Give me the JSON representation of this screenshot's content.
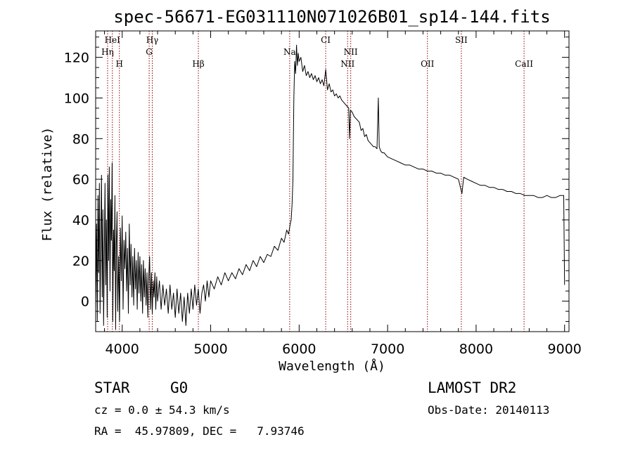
{
  "chart_data": {
    "type": "line",
    "title": "spec-56671-EG031110N071026B01_sp14-144.fits",
    "xlabel": "Wavelength (Å)",
    "ylabel": "Flux (relative)",
    "xlim": [
      3700,
      9050
    ],
    "ylim": [
      -15,
      133
    ],
    "x_ticks": [
      4000,
      5000,
      6000,
      7000,
      8000,
      9000
    ],
    "y_ticks": [
      0,
      20,
      40,
      60,
      80,
      100,
      120
    ],
    "line_color": "#000000",
    "marker_color": "#8b0000",
    "series": [
      {
        "points": [
          [
            3700,
            -3
          ],
          [
            3710,
            38
          ],
          [
            3718,
            -10
          ],
          [
            3726,
            52
          ],
          [
            3734,
            14
          ],
          [
            3742,
            58
          ],
          [
            3750,
            -6
          ],
          [
            3758,
            30
          ],
          [
            3766,
            62
          ],
          [
            3774,
            2
          ],
          [
            3782,
            45
          ],
          [
            3790,
            -12
          ],
          [
            3798,
            24
          ],
          [
            3806,
            58
          ],
          [
            3814,
            8
          ],
          [
            3822,
            40
          ],
          [
            3830,
            -8
          ],
          [
            3838,
            62
          ],
          [
            3846,
            20
          ],
          [
            3854,
            66
          ],
          [
            3862,
            5
          ],
          [
            3870,
            50
          ],
          [
            3878,
            30
          ],
          [
            3886,
            68
          ],
          [
            3894,
            -10
          ],
          [
            3902,
            35
          ],
          [
            3910,
            15
          ],
          [
            3918,
            52
          ],
          [
            3926,
            -14
          ],
          [
            3934,
            28
          ],
          [
            3942,
            44
          ],
          [
            3950,
            -5
          ],
          [
            3960,
            22
          ],
          [
            3970,
            -10
          ],
          [
            3980,
            36
          ],
          [
            3990,
            10
          ],
          [
            4000,
            42
          ],
          [
            4010,
            -4
          ],
          [
            4020,
            30
          ],
          [
            4030,
            16
          ],
          [
            4040,
            34
          ],
          [
            4050,
            5
          ],
          [
            4060,
            26
          ],
          [
            4070,
            -6
          ],
          [
            4080,
            38
          ],
          [
            4090,
            8
          ],
          [
            4100,
            28
          ],
          [
            4110,
            2
          ],
          [
            4120,
            22
          ],
          [
            4130,
            -2
          ],
          [
            4140,
            26
          ],
          [
            4150,
            6
          ],
          [
            4160,
            20
          ],
          [
            4170,
            -4
          ],
          [
            4180,
            24
          ],
          [
            4190,
            4
          ],
          [
            4200,
            22
          ],
          [
            4210,
            0
          ],
          [
            4220,
            18
          ],
          [
            4230,
            -6
          ],
          [
            4240,
            20
          ],
          [
            4250,
            2
          ],
          [
            4260,
            16
          ],
          [
            4270,
            -2
          ],
          [
            4280,
            14
          ],
          [
            4290,
            -8
          ],
          [
            4300,
            12
          ],
          [
            4310,
            22
          ],
          [
            4320,
            -4
          ],
          [
            4330,
            14
          ],
          [
            4340,
            -6
          ],
          [
            4350,
            10
          ],
          [
            4360,
            2
          ],
          [
            4370,
            14
          ],
          [
            4380,
            -4
          ],
          [
            4390,
            12
          ],
          [
            4400,
            0
          ],
          [
            4420,
            10
          ],
          [
            4440,
            -4
          ],
          [
            4460,
            8
          ],
          [
            4480,
            -2
          ],
          [
            4500,
            6
          ],
          [
            4520,
            -6
          ],
          [
            4540,
            8
          ],
          [
            4560,
            -4
          ],
          [
            4580,
            4
          ],
          [
            4600,
            -8
          ],
          [
            4620,
            6
          ],
          [
            4640,
            -6
          ],
          [
            4660,
            4
          ],
          [
            4680,
            -10
          ],
          [
            4700,
            2
          ],
          [
            4720,
            -12
          ],
          [
            4740,
            4
          ],
          [
            4760,
            -6
          ],
          [
            4780,
            6
          ],
          [
            4800,
            -4
          ],
          [
            4820,
            8
          ],
          [
            4840,
            -2
          ],
          [
            4860,
            6
          ],
          [
            4880,
            -6
          ],
          [
            4900,
            4
          ],
          [
            4920,
            8
          ],
          [
            4940,
            0
          ],
          [
            4960,
            10
          ],
          [
            4980,
            2
          ],
          [
            5000,
            10
          ],
          [
            5040,
            6
          ],
          [
            5080,
            12
          ],
          [
            5120,
            8
          ],
          [
            5160,
            14
          ],
          [
            5200,
            10
          ],
          [
            5240,
            14
          ],
          [
            5280,
            11
          ],
          [
            5320,
            16
          ],
          [
            5360,
            13
          ],
          [
            5400,
            18
          ],
          [
            5440,
            15
          ],
          [
            5480,
            20
          ],
          [
            5520,
            17
          ],
          [
            5560,
            22
          ],
          [
            5600,
            19
          ],
          [
            5640,
            23
          ],
          [
            5680,
            22
          ],
          [
            5720,
            27
          ],
          [
            5760,
            25
          ],
          [
            5800,
            31
          ],
          [
            5830,
            29
          ],
          [
            5860,
            35
          ],
          [
            5880,
            33
          ],
          [
            5900,
            38
          ],
          [
            5910,
            40
          ],
          [
            5920,
            48
          ],
          [
            5930,
            60
          ],
          [
            5940,
            100
          ],
          [
            5950,
            118
          ],
          [
            5960,
            112
          ],
          [
            5970,
            126
          ],
          [
            5980,
            116
          ],
          [
            5990,
            122
          ],
          [
            6000,
            118
          ],
          [
            6020,
            120
          ],
          [
            6040,
            113
          ],
          [
            6060,
            116
          ],
          [
            6080,
            111
          ],
          [
            6100,
            113
          ],
          [
            6120,
            110
          ],
          [
            6140,
            112
          ],
          [
            6160,
            109
          ],
          [
            6180,
            111
          ],
          [
            6200,
            108
          ],
          [
            6220,
            110
          ],
          [
            6240,
            107
          ],
          [
            6260,
            109
          ],
          [
            6280,
            106
          ],
          [
            6300,
            114
          ],
          [
            6320,
            104
          ],
          [
            6340,
            107
          ],
          [
            6360,
            103
          ],
          [
            6380,
            104
          ],
          [
            6400,
            101
          ],
          [
            6420,
            102
          ],
          [
            6440,
            100
          ],
          [
            6460,
            101
          ],
          [
            6480,
            99
          ],
          [
            6500,
            98
          ],
          [
            6520,
            97
          ],
          [
            6540,
            96
          ],
          [
            6560,
            95
          ],
          [
            6570,
            80
          ],
          [
            6580,
            94
          ],
          [
            6600,
            93
          ],
          [
            6620,
            91
          ],
          [
            6640,
            90
          ],
          [
            6660,
            89
          ],
          [
            6680,
            88
          ],
          [
            6700,
            84
          ],
          [
            6720,
            85
          ],
          [
            6740,
            81
          ],
          [
            6760,
            82
          ],
          [
            6780,
            79
          ],
          [
            6800,
            78
          ],
          [
            6820,
            77
          ],
          [
            6840,
            76
          ],
          [
            6860,
            76
          ],
          [
            6880,
            75
          ],
          [
            6895,
            100
          ],
          [
            6905,
            76
          ],
          [
            6920,
            74
          ],
          [
            6940,
            73
          ],
          [
            6960,
            73
          ],
          [
            6980,
            72
          ],
          [
            7000,
            71
          ],
          [
            7050,
            70
          ],
          [
            7100,
            69
          ],
          [
            7150,
            68
          ],
          [
            7200,
            67
          ],
          [
            7250,
            67
          ],
          [
            7300,
            66
          ],
          [
            7350,
            65
          ],
          [
            7400,
            65
          ],
          [
            7450,
            64
          ],
          [
            7500,
            64
          ],
          [
            7550,
            63
          ],
          [
            7600,
            63
          ],
          [
            7650,
            62
          ],
          [
            7700,
            62
          ],
          [
            7750,
            61
          ],
          [
            7800,
            60
          ],
          [
            7840,
            53
          ],
          [
            7860,
            61
          ],
          [
            7900,
            60
          ],
          [
            7950,
            59
          ],
          [
            8000,
            58
          ],
          [
            8050,
            57
          ],
          [
            8100,
            57
          ],
          [
            8150,
            56
          ],
          [
            8200,
            56
          ],
          [
            8250,
            55
          ],
          [
            8300,
            55
          ],
          [
            8350,
            54
          ],
          [
            8400,
            54
          ],
          [
            8450,
            53
          ],
          [
            8500,
            53
          ],
          [
            8550,
            52
          ],
          [
            8600,
            52
          ],
          [
            8650,
            52
          ],
          [
            8700,
            51
          ],
          [
            8750,
            51
          ],
          [
            8800,
            52
          ],
          [
            8850,
            51
          ],
          [
            8900,
            51
          ],
          [
            8950,
            52
          ],
          [
            8990,
            52
          ],
          [
            9000,
            8
          ]
        ]
      }
    ],
    "lines": [
      {
        "name": "Hη",
        "x": 3835,
        "row": 2
      },
      {
        "name": "HeI",
        "x": 3889,
        "row": 1
      },
      {
        "name": "H",
        "x": 3968,
        "row": 3
      },
      {
        "name": "Hγ",
        "x": 4340,
        "row": 1
      },
      {
        "name": "G",
        "x": 4305,
        "row": 2
      },
      {
        "name": "Hβ",
        "x": 4861,
        "row": 3
      },
      {
        "name": "Na",
        "x": 5893,
        "row": 2
      },
      {
        "name": "CI",
        "x": 6300,
        "row": 1
      },
      {
        "name": "NII",
        "x": 6583,
        "row": 2
      },
      {
        "name": "NII",
        "x": 6548,
        "row": 3
      },
      {
        "name": "OII",
        "x": 7450,
        "row": 3
      },
      {
        "name": "SII",
        "x": 7833,
        "row": 1
      },
      {
        "name": "CaII",
        "x": 8542,
        "row": 3
      }
    ]
  },
  "info": {
    "class": "STAR",
    "subclass": "G0",
    "redshift": "cz = 0.0 ± 54.3 km/s",
    "coords": "RA =  45.97809, DEC =   7.93746",
    "survey": "LAMOST DR2",
    "obs_date": "Obs-Date: 20140113"
  }
}
